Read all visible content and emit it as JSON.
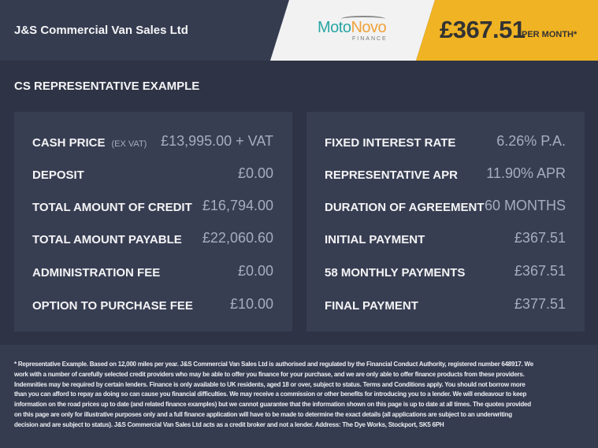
{
  "header": {
    "dealer_name": "J&S Commercial Van Sales Ltd",
    "logo": {
      "moto": "Moto",
      "novo": "Novo",
      "finance": "FINANCE"
    },
    "monthly_price": "£367.51",
    "per_month_label": "PER MONTH*",
    "colors": {
      "accent": "#f0b323",
      "logo_teal": "#2aa6a3",
      "logo_orange": "#f0a23a"
    }
  },
  "section_title": "CS REPRESENTATIVE EXAMPLE",
  "left_panel": [
    {
      "label": "CASH PRICE",
      "sub": "(EX VAT)",
      "value": "£13,995.00 + VAT"
    },
    {
      "label": "DEPOSIT",
      "sub": "",
      "value": "£0.00"
    },
    {
      "label": "TOTAL AMOUNT OF CREDIT",
      "sub": "",
      "value": "£16,794.00"
    },
    {
      "label": "TOTAL AMOUNT PAYABLE",
      "sub": "",
      "value": "£22,060.60"
    },
    {
      "label": "ADMINISTRATION FEE",
      "sub": "",
      "value": "£0.00"
    },
    {
      "label": "OPTION TO PURCHASE FEE",
      "sub": "",
      "value": "£10.00"
    }
  ],
  "right_panel": [
    {
      "label": "FIXED INTEREST RATE",
      "value": "6.26% P.A."
    },
    {
      "label": "REPRESENTATIVE APR",
      "value": "11.90% APR"
    },
    {
      "label": "DURATION OF AGREEMENT",
      "value": "60 MONTHS"
    },
    {
      "label": "INITIAL PAYMENT",
      "value": "£367.51"
    },
    {
      "label": "58 MONTHLY PAYMENTS",
      "value": "£367.51"
    },
    {
      "label": "FINAL PAYMENT",
      "value": "£377.51"
    }
  ],
  "footer": {
    "disclaimer": "* Representative Example. Based on 12,000 miles per year. J&S Commercial Van Sales Ltd is authorised and regulated by the Financial Conduct Authority, registered number 648917. We work with a number of carefully selected credit providers who may be able to offer you finance for your purchase, and we are only able to offer finance products from these providers. Indemnities may be required by certain lenders. Finance is only available to UK residents, aged 18 or over, subject to status. Terms and Conditions apply. You should not borrow more than you can afford to repay as doing so can cause you financial difficulties. We may receive a commission or other benefits for introducing you to a lender. We will endeavour to keep information on the road prices up to date (and related finance examples) but we cannot guarantee that the information shown on this page is up to date at all times. The quotes provided on this page are only for illustrative purposes only and a full finance application will have to be made to determine the exact details (all applications are subject to an underwriting decision and are subject to status). J&S Commercial Van Sales Ltd acts as a credit broker and not a lender. Address: The Dye Works, Stockport, SK5 6PH"
  }
}
